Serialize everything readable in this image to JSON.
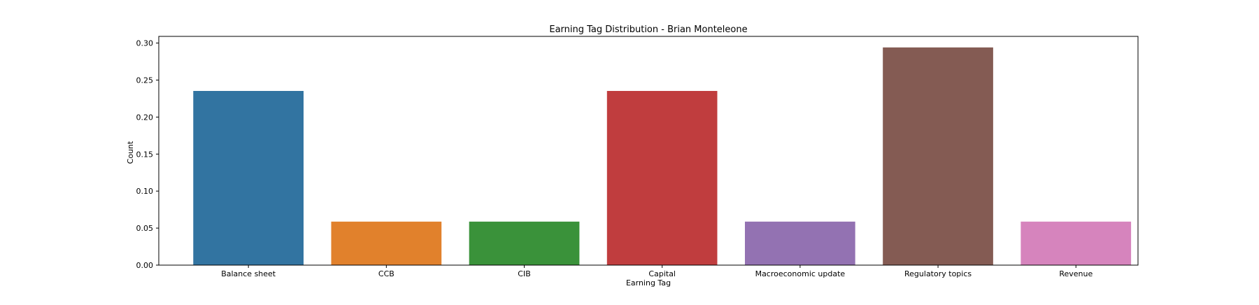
{
  "chart_data": {
    "type": "bar",
    "title": "Earning Tag Distribution - Brian Monteleone",
    "xlabel": "Earning Tag",
    "ylabel": "Count",
    "categories": [
      "Balance sheet",
      "CCB",
      "CIB",
      "Capital",
      "Macroeconomic update",
      "Regulatory topics",
      "Revenue"
    ],
    "values": [
      0.2353,
      0.0588,
      0.0588,
      0.2353,
      0.0588,
      0.2941,
      0.0588
    ],
    "colors": [
      "#3274a1",
      "#e1812c",
      "#3a923a",
      "#c03d3e",
      "#9372b2",
      "#845b53",
      "#d684bd"
    ],
    "ylim": [
      0,
      0.309
    ],
    "yticks": [
      "0.00",
      "0.05",
      "0.10",
      "0.15",
      "0.20",
      "0.25",
      "0.30"
    ],
    "grid": false,
    "legend": "none"
  }
}
